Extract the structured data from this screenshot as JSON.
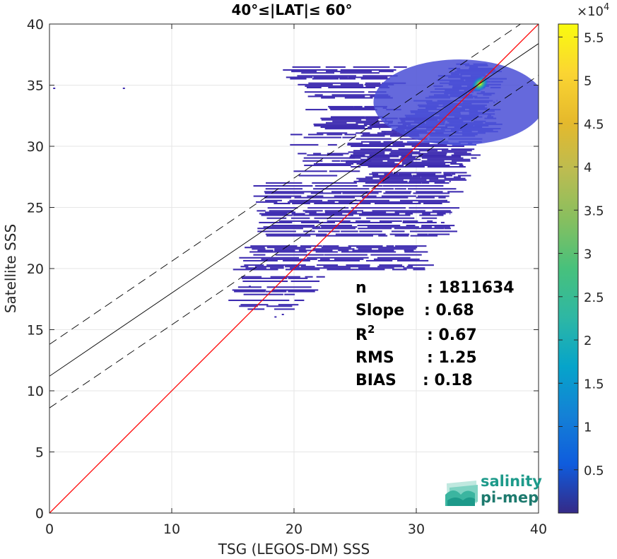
{
  "chart_data": {
    "type": "heatmap",
    "title": "40°≤|LAT|≤ 60°",
    "xlabel": "TSG (LEGOS-DM) SSS",
    "ylabel": "Satellite SSS",
    "xlim": [
      0,
      40
    ],
    "ylim": [
      0,
      40
    ],
    "xticks": [
      "0",
      "10",
      "20",
      "30",
      "40"
    ],
    "yticks": [
      "0",
      "5",
      "10",
      "15",
      "20",
      "25",
      "30",
      "35",
      "40"
    ],
    "grid": true,
    "colorbar": {
      "exponent_label": "×10",
      "exponent_power": "4",
      "range": [
        0,
        5.65
      ],
      "ticks": [
        "0.5",
        "1",
        "1.5",
        "2",
        "2.5",
        "3",
        "3.5",
        "4",
        "4.5",
        "5",
        "5.5"
      ],
      "colormap": "parula"
    },
    "density_peak": {
      "x": 35.2,
      "y": 35.1,
      "count_e4": 5.6
    },
    "lines": [
      {
        "name": "1:1",
        "slope": 1.0,
        "intercept": 0.0,
        "color": "#ff0000",
        "style": "solid"
      },
      {
        "name": "fit",
        "slope": 0.68,
        "intercept": 11.2,
        "color": "#000000",
        "style": "solid"
      },
      {
        "name": "fit + 1σ",
        "slope": 0.68,
        "intercept": 13.8,
        "color": "#000000",
        "style": "dashed"
      },
      {
        "name": "fit - 1σ",
        "slope": 0.68,
        "intercept": 8.6,
        "color": "#000000",
        "style": "dashed"
      }
    ],
    "stats": [
      {
        "label": "n",
        "sup": "",
        "value": ": 1811634"
      },
      {
        "label": "Slope",
        "sup": "",
        "value": ": 0.68"
      },
      {
        "label": "R",
        "sup": "2",
        "value": ": 0.67"
      },
      {
        "label": "RMS",
        "sup": "",
        "value": ": 1.25"
      },
      {
        "label": "BIAS",
        "sup": "",
        "value": ": 0.18"
      }
    ]
  },
  "logo": {
    "line1": "salinity",
    "line2": "pi-mep"
  },
  "colors": {
    "scatter": "#3d2bb0",
    "scatter_dense": "#4a4fd6",
    "one_to_one": "#ff0000",
    "logo_text": "#1d9a8a",
    "logo_mark": "#7fd3c3"
  }
}
